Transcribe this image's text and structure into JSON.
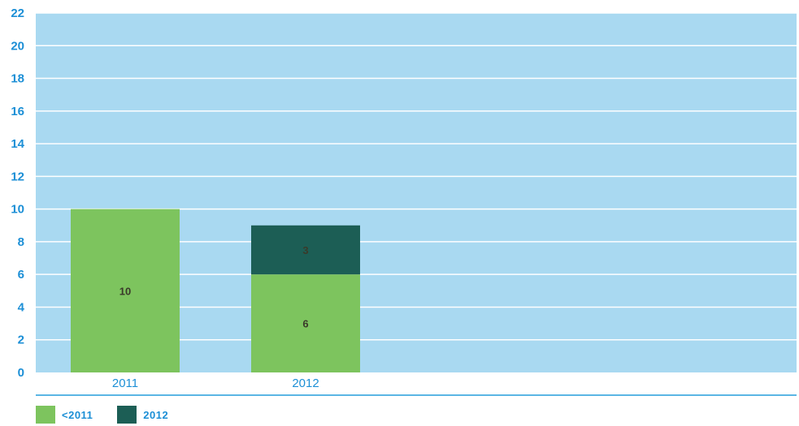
{
  "chart_data": {
    "type": "bar",
    "stacked": true,
    "categories": [
      "2011",
      "2012"
    ],
    "series": [
      {
        "name": "<2011",
        "values": [
          10,
          6
        ],
        "color": "#7dc45e"
      },
      {
        "name": "2012",
        "values": [
          0,
          3
        ],
        "color": "#1c5e55"
      }
    ],
    "data_labels": [
      [
        "10",
        "6"
      ],
      [
        "",
        "3"
      ]
    ],
    "ylim": [
      0,
      22
    ],
    "yticks": [
      0,
      2,
      4,
      6,
      8,
      10,
      12,
      14,
      16,
      18,
      20,
      22
    ],
    "grid": true,
    "legend_position": "bottom-left",
    "plot_background": "#a9d9f1"
  }
}
